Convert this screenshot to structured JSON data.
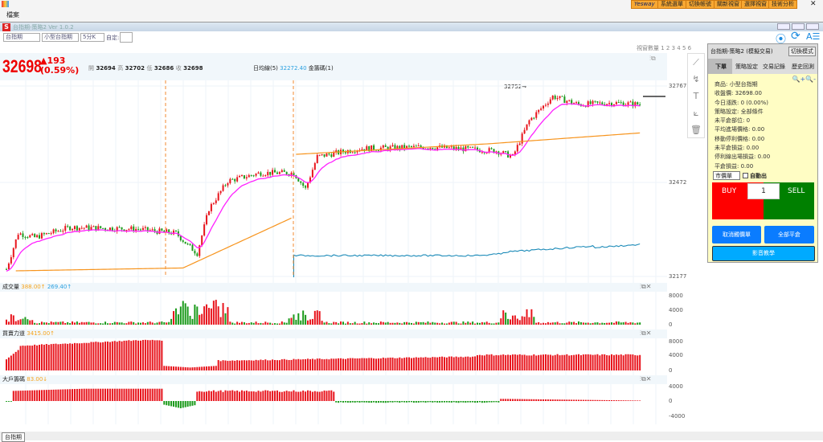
{
  "menu": {
    "file": "檔案",
    "buttons": [
      "Yesway",
      "系統選單",
      "切換帳號",
      "關新視窗",
      "選擇視窗",
      "技術分析"
    ]
  },
  "window": {
    "title": "台指期-策略2 Ver 1.0.2"
  },
  "toolbar": {
    "market": "台指期",
    "product": "小型台指期",
    "interval": "5分K",
    "custom_label": "自定:",
    "window_count": "視窗數量 1 2 3 4 5 6"
  },
  "quote": {
    "price": "32698",
    "change": "▲193",
    "change_pct": "(0.59%)",
    "open_label": "開",
    "open": "32694",
    "high_label": "高",
    "high": "32702",
    "low_label": "低",
    "low": "32686",
    "close_label": "收",
    "close": "32698",
    "ma_label": "日均線(5)",
    "ma_value": "32272.40",
    "gold_label": "金籌碼(1)",
    "peak_label": "32752→"
  },
  "price_axis": [
    "32767",
    "32472",
    "32177"
  ],
  "volume": {
    "label": "成交量",
    "v1": "388.00↑",
    "v2": "269.40↑",
    "axis": [
      "8000",
      "4000",
      "0"
    ]
  },
  "power": {
    "label": "買賣力道",
    "v1": "3415.00↑",
    "axis": [
      "8000",
      "4000",
      "0"
    ]
  },
  "big": {
    "label": "大戶籌碼",
    "v1": "83.00↓",
    "axis": [
      "4000",
      "0",
      "-4000"
    ]
  },
  "panel": {
    "title": "台指期-策略2 (模擬交易)",
    "switch": "切換模式",
    "tabs": [
      "下單",
      "策略設定",
      "交易記錄",
      "歷史回測"
    ],
    "rows": [
      "商品: 小型台指期",
      "收盤價: 32698.00",
      "今日漲跌: 0 (0.00%)",
      "策略設定: 全部條件",
      "未平倉部位: 0",
      "平均進場價格: 0.00",
      "移動停利價格: 0.00",
      "未平倉損益: 0.00",
      "停利線出場損益: 0.00",
      "平倉損益: 0.00"
    ],
    "order_type": "市價單",
    "auto_exit": "自動出",
    "buy": "BUY",
    "sell": "SELL",
    "qty": "1",
    "cancel": "取消觸價單",
    "close_all": "全部平倉",
    "video": "影音教學"
  },
  "bottom_tab": "台指期",
  "colors": {
    "up": "#e8141c",
    "down": "#1a9a1a",
    "ma_fast": "#ff22ff",
    "ma_slow": "#f7941d",
    "blue": "#1a8ab8"
  },
  "price_path": [
    [
      0,
      32202
    ],
    [
      5,
      32313
    ],
    [
      12,
      32300
    ],
    [
      27,
      32331
    ],
    [
      55,
      32326
    ],
    [
      72,
      32313
    ],
    [
      77,
      32276
    ],
    [
      81,
      32251
    ],
    [
      86,
      32388
    ],
    [
      94,
      32474
    ],
    [
      108,
      32499
    ],
    [
      122,
      32499
    ],
    [
      127,
      32450
    ],
    [
      132,
      32549
    ],
    [
      150,
      32574
    ],
    [
      180,
      32579
    ],
    [
      208,
      32567
    ],
    [
      215,
      32549
    ],
    [
      222,
      32660
    ],
    [
      232,
      32735
    ],
    [
      243,
      32710
    ],
    [
      258,
      32715
    ],
    [
      270,
      32710
    ]
  ]
}
